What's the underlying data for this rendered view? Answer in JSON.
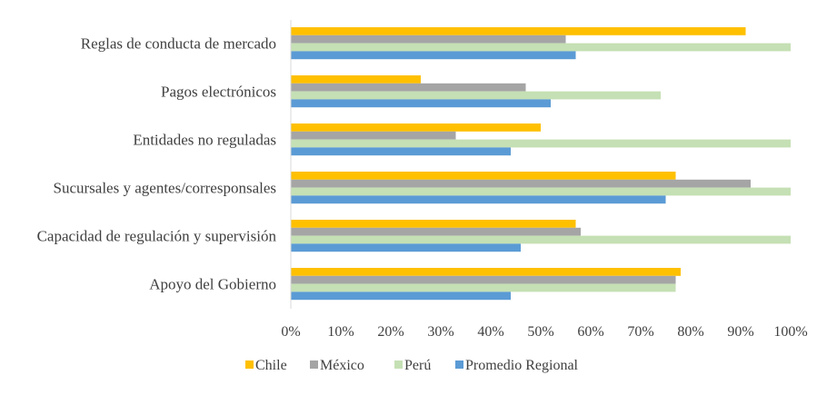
{
  "chart_data": {
    "type": "bar",
    "orientation": "horizontal",
    "categories": [
      "Reglas de conducta de mercado",
      "Pagos electrónicos",
      "Entidades no reguladas",
      "Sucursales y agentes/corresponsales",
      "Capacidad de regulación y supervisión",
      "Apoyo del Gobierno"
    ],
    "series": [
      {
        "name": "Chile",
        "color": "#FFC000",
        "values": [
          91,
          26,
          50,
          77,
          57,
          78
        ]
      },
      {
        "name": "México",
        "color": "#A5A5A5",
        "values": [
          55,
          47,
          33,
          92,
          58,
          77
        ]
      },
      {
        "name": "Perú",
        "color": "#C5E0B4",
        "values": [
          100,
          74,
          100,
          100,
          100,
          77
        ]
      },
      {
        "name": "Promedio Regional",
        "color": "#5B9BD5",
        "values": [
          57,
          52,
          44,
          75,
          46,
          44
        ]
      }
    ],
    "x_ticks": [
      "0%",
      "10%",
      "20%",
      "30%",
      "40%",
      "50%",
      "60%",
      "70%",
      "80%",
      "90%",
      "100%"
    ],
    "xlim": [
      0,
      100
    ],
    "grid": false,
    "legend_position": "bottom",
    "title": "",
    "xlabel": "",
    "ylabel": ""
  }
}
